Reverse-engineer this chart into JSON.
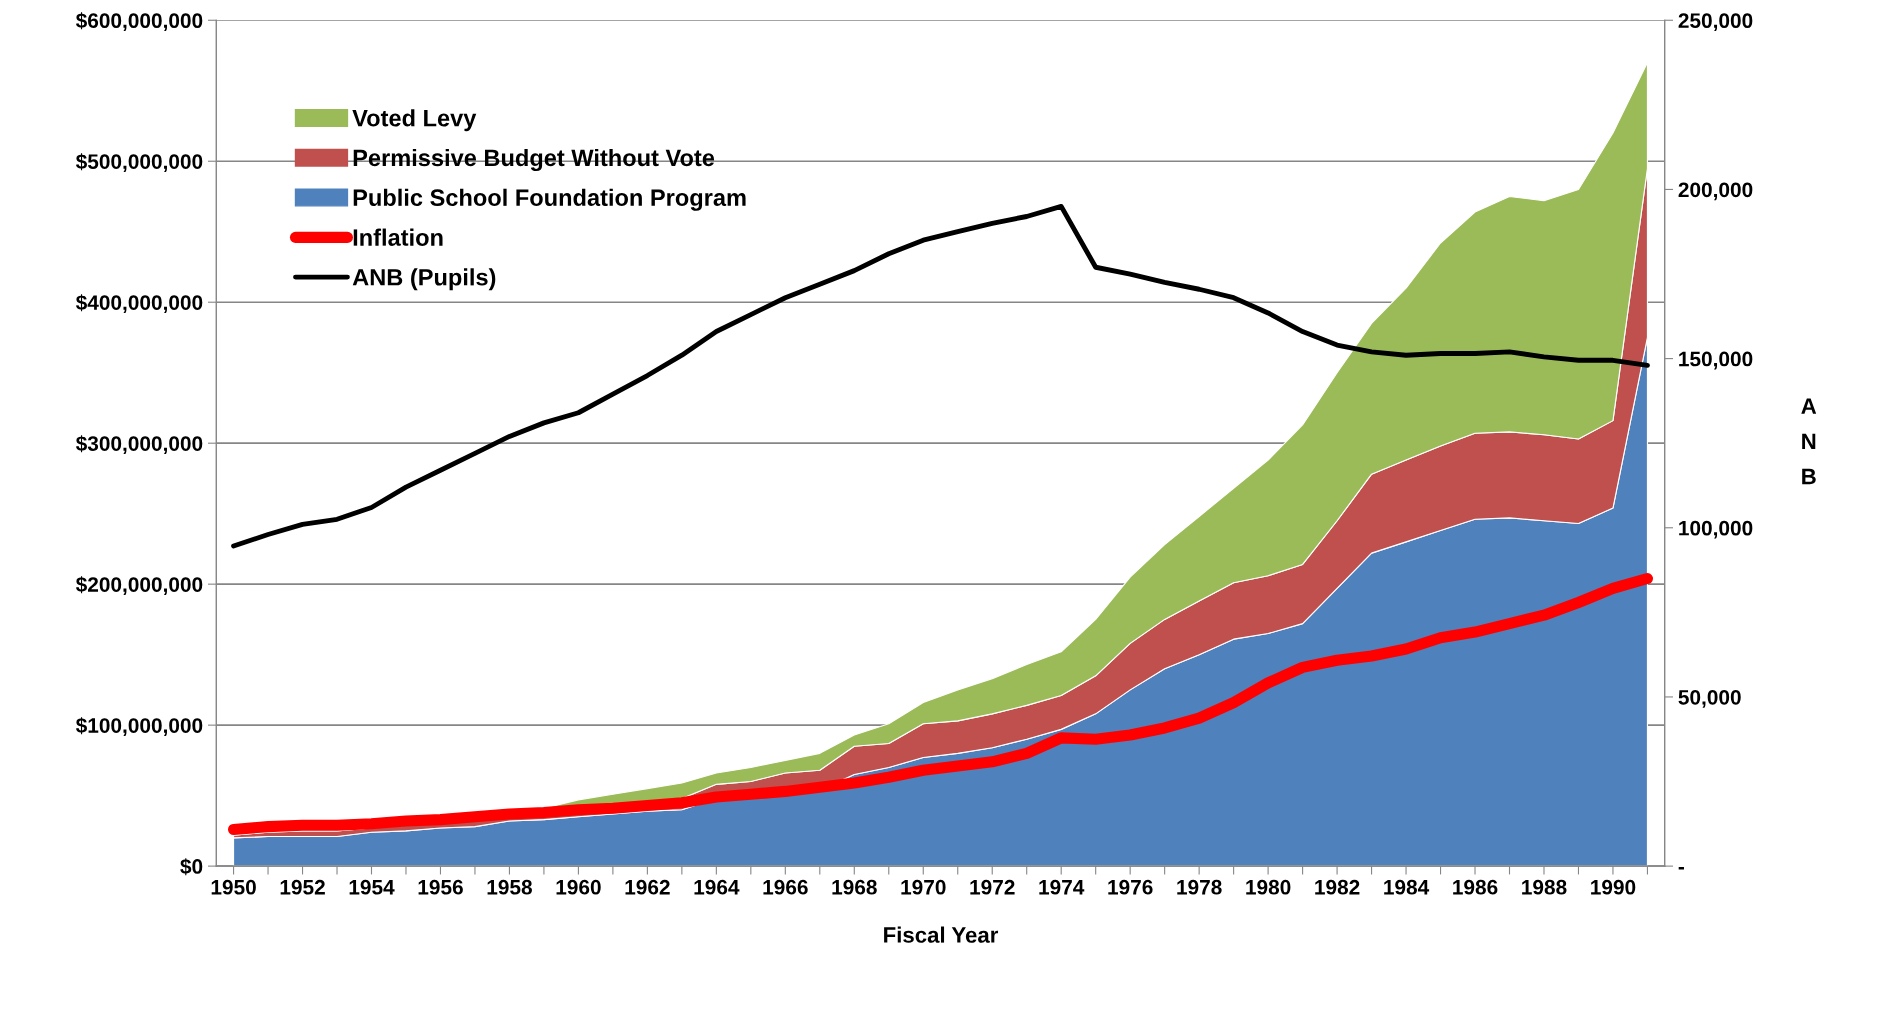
{
  "chart_data": {
    "type": "area",
    "stacked": true,
    "xlabel": "Fiscal Year",
    "y2label": "ANB",
    "x": [
      1950,
      1951,
      1952,
      1953,
      1954,
      1955,
      1956,
      1957,
      1958,
      1959,
      1960,
      1961,
      1962,
      1963,
      1964,
      1965,
      1966,
      1967,
      1968,
      1969,
      1970,
      1971,
      1972,
      1973,
      1974,
      1975,
      1976,
      1977,
      1978,
      1979,
      1980,
      1981,
      1982,
      1983,
      1984,
      1985,
      1986,
      1987,
      1988,
      1989,
      1990,
      1991
    ],
    "series": [
      {
        "name": "Public School Foundation Program",
        "color": "#4f81bd",
        "values": [
          20000000,
          21000000,
          21000000,
          21000000,
          24000000,
          25000000,
          27000000,
          28000000,
          32000000,
          33000000,
          35000000,
          37000000,
          39000000,
          40000000,
          48000000,
          49000000,
          53000000,
          54000000,
          65000000,
          70000000,
          77000000,
          80000000,
          84000000,
          90000000,
          97000000,
          108000000,
          125000000,
          140000000,
          150000000,
          161000000,
          165000000,
          172000000,
          197000000,
          222000000,
          230000000,
          238000000,
          246000000,
          247000000,
          245000000,
          243000000,
          254000000,
          375000000
        ]
      },
      {
        "name": "Permissive Budget Without Vote",
        "color": "#c0504d",
        "values": [
          2000000,
          3000000,
          4000000,
          4000000,
          3000000,
          4000000,
          4000000,
          5000000,
          4000000,
          5000000,
          6000000,
          6000000,
          7000000,
          8000000,
          10000000,
          11000000,
          13000000,
          14000000,
          20000000,
          17000000,
          24000000,
          23000000,
          24000000,
          24000000,
          24000000,
          27000000,
          33000000,
          35000000,
          38000000,
          40000000,
          41000000,
          42000000,
          48000000,
          56000000,
          58000000,
          60000000,
          61000000,
          61000000,
          61000000,
          60000000,
          62000000,
          120000000
        ]
      },
      {
        "name": "Voted Levy",
        "color": "#9bbb59",
        "values": [
          0,
          0,
          0,
          1000000,
          1000000,
          1000000,
          1000000,
          2000000,
          2000000,
          3000000,
          6000000,
          8000000,
          9000000,
          11000000,
          8000000,
          10000000,
          9000000,
          12000000,
          8000000,
          14000000,
          15000000,
          22000000,
          25000000,
          29000000,
          31000000,
          40000000,
          47000000,
          53000000,
          60000000,
          67000000,
          82000000,
          99000000,
          105000000,
          107000000,
          122000000,
          144000000,
          157000000,
          167000000,
          166000000,
          177000000,
          204000000,
          75000000
        ]
      },
      {
        "name": "Inflation",
        "type": "line",
        "color": "#ff0000",
        "values": [
          26000000,
          28000000,
          29000000,
          29000000,
          30000000,
          32000000,
          33000000,
          35000000,
          37000000,
          38000000,
          40000000,
          41000000,
          43000000,
          45000000,
          49000000,
          51000000,
          53000000,
          56000000,
          59000000,
          63000000,
          68000000,
          71000000,
          74000000,
          80000000,
          91000000,
          90000000,
          93000000,
          98000000,
          105000000,
          116000000,
          130000000,
          141000000,
          146000000,
          149000000,
          154000000,
          162000000,
          166000000,
          172000000,
          178000000,
          187000000,
          197000000,
          204000000
        ]
      },
      {
        "name": "ANB (Pupils)",
        "type": "line",
        "axis": "y2",
        "color": "#000000",
        "values": [
          94600,
          98000,
          101000,
          102500,
          106000,
          112000,
          117000,
          122000,
          127000,
          131000,
          134000,
          139500,
          145000,
          151000,
          158000,
          163000,
          168000,
          172000,
          176000,
          181000,
          185000,
          187500,
          190000,
          192000,
          195000,
          177000,
          175000,
          172500,
          170500,
          168000,
          163500,
          158000,
          154000,
          152000,
          151000,
          151500,
          151500,
          152000,
          150500,
          149500,
          149500,
          148000
        ]
      }
    ],
    "xlim": [
      1949.5,
      1991.5
    ],
    "xticks": [
      1950,
      {
        "value": 1951,
        "label": null
      },
      1952,
      {
        "value": 1953,
        "label": null
      },
      1954,
      {
        "value": 1955,
        "label": null
      },
      1956,
      {
        "value": 1957,
        "label": null
      },
      1958,
      {
        "value": 1959,
        "label": null
      },
      1960,
      {
        "value": 1961,
        "label": null
      },
      1962,
      {
        "value": 1963,
        "label": null
      },
      1964,
      {
        "value": 1965,
        "label": null
      },
      1966,
      {
        "value": 1967,
        "label": null
      },
      1968,
      {
        "value": 1969,
        "label": null
      },
      1970,
      {
        "value": 1971,
        "label": null
      },
      1972,
      {
        "value": 1973,
        "label": null
      },
      1974,
      {
        "value": 1975,
        "label": null
      },
      1976,
      {
        "value": 1977,
        "label": null
      },
      1978,
      {
        "value": 1979,
        "label": null
      },
      1980,
      {
        "value": 1981,
        "label": null
      },
      1982,
      {
        "value": 1983,
        "label": null
      },
      1984,
      {
        "value": 1985,
        "label": null
      },
      1986,
      {
        "value": 1987,
        "label": null
      },
      1988,
      {
        "value": 1989,
        "label": null
      },
      1990,
      {
        "value": 1991,
        "label": null
      }
    ],
    "ylim": [
      0,
      600000000
    ],
    "yticks": [
      {
        "value": 0,
        "label": "$0"
      },
      {
        "value": 100000000,
        "label": "$100,000,000"
      },
      {
        "value": 200000000,
        "label": "$200,000,000"
      },
      {
        "value": 300000000,
        "label": "$300,000,000"
      },
      {
        "value": 400000000,
        "label": "$400,000,000"
      },
      {
        "value": 500000000,
        "label": "$500,000,000"
      },
      {
        "value": 600000000,
        "label": "$600,000,000"
      }
    ],
    "y2lim": [
      0,
      250000
    ],
    "y2ticks": [
      {
        "value": 0,
        "label": "-"
      },
      {
        "value": 50000,
        "label": "50,000"
      },
      {
        "value": 100000,
        "label": "100,000"
      },
      {
        "value": 150000,
        "label": "150,000"
      },
      {
        "value": 200000,
        "label": "200,000"
      },
      {
        "value": 250000,
        "label": "250,000"
      }
    ],
    "grid": "y",
    "legend": "top left"
  }
}
